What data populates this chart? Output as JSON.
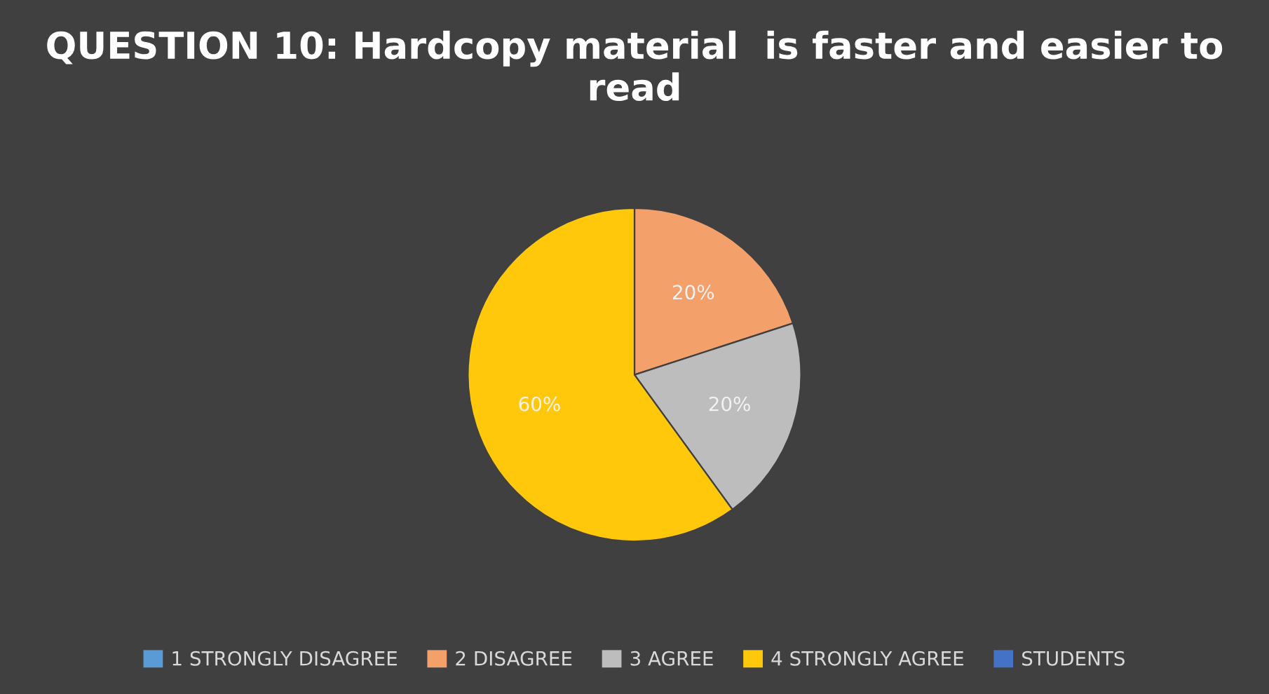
{
  "chart_data": {
    "type": "pie",
    "title": "QUESTION 10: Hardcopy material  is faster and easier to read",
    "categories": [
      "1 STRONGLY DISAGREE",
      "2 DISAGREE",
      "3 AGREE",
      "4 STRONGLY AGREE",
      "STUDENTS"
    ],
    "values": [
      0,
      20,
      20,
      60,
      0
    ],
    "colors": [
      "#5b9bd5",
      "#f4a06a",
      "#bdbdbd",
      "#ffc80a",
      "#4472c4"
    ],
    "value_labels": [
      null,
      "20%",
      "20%",
      "60%",
      null
    ],
    "legend": "bottom"
  }
}
